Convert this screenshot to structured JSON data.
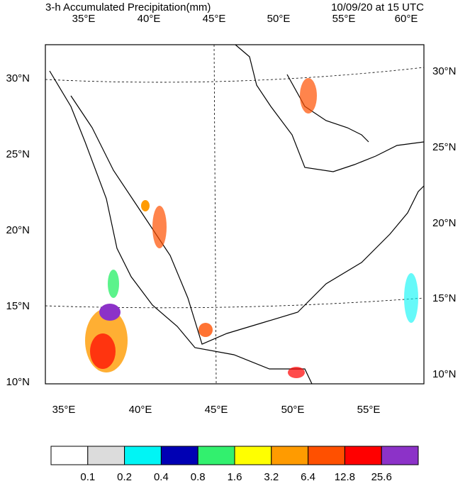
{
  "header": {
    "title": "3-h Accumulated Precipitation(mm)",
    "time": "10/09/20 at 15 UTC"
  },
  "map": {
    "top_labels": [
      "35°E",
      "40°E",
      "45°E",
      "50°E",
      "55°E",
      "60°E"
    ],
    "bottom_labels": [
      "35°E",
      "40°E",
      "45°E",
      "50°E",
      "55°E"
    ],
    "left_labels": [
      "30°N",
      "25°N",
      "20°N",
      "15°N",
      "10°N"
    ],
    "right_labels": [
      "30°N",
      "25°N",
      "20°N",
      "15°N",
      "10°N"
    ]
  },
  "colorbar": {
    "colors": [
      "#ffffff",
      "#dcdcdc",
      "#00f5f5",
      "#0000b4",
      "#32f06e",
      "#ffff00",
      "#ff9b00",
      "#ff5000",
      "#ff0000",
      "#8c32c8"
    ],
    "labels": [
      "0.1",
      "0.2",
      "0.4",
      "0.8",
      "1.6",
      "3.2",
      "6.4",
      "12.8",
      "25.6"
    ]
  }
}
